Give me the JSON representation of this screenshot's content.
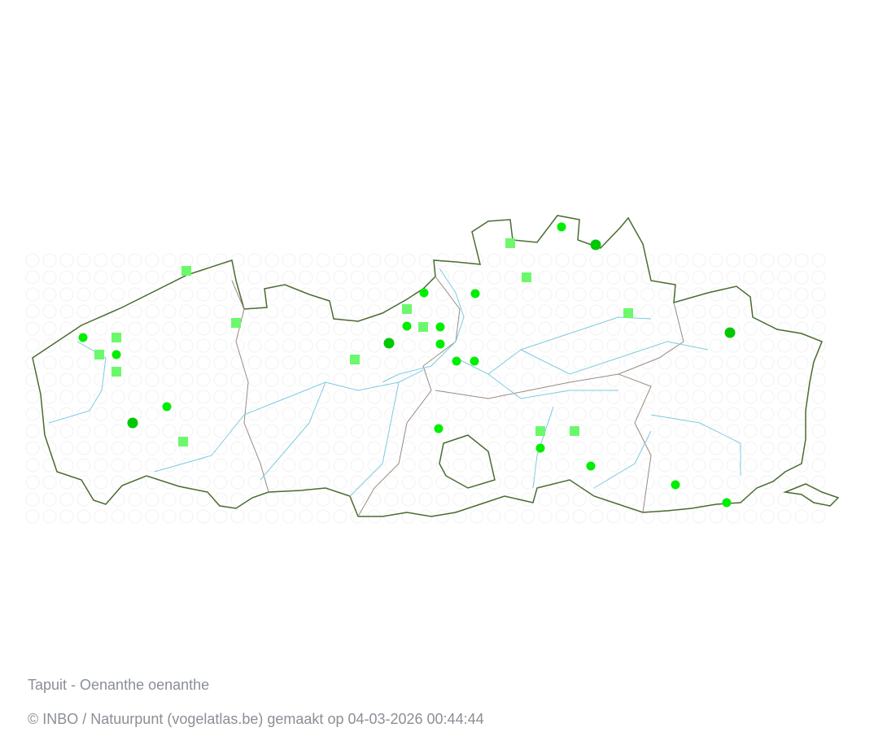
{
  "map": {
    "title": "Tapuit - Oenanthe oenanthe",
    "credit": "© INBO / Natuurpunt (vogelatlas.be) gemaakt op 04-03-2026 00:44:44",
    "colors": {
      "border": "#4a6b30",
      "internal_border": "#9a8a80",
      "river": "#7ccbe0",
      "grid_circle": "#f2f2f2",
      "marker_circle": "#00ee00",
      "marker_circle_dark": "#00c800",
      "marker_square": "#6cf86c"
    },
    "marker_types": [
      "circle",
      "circle-dark",
      "square"
    ]
  }
}
